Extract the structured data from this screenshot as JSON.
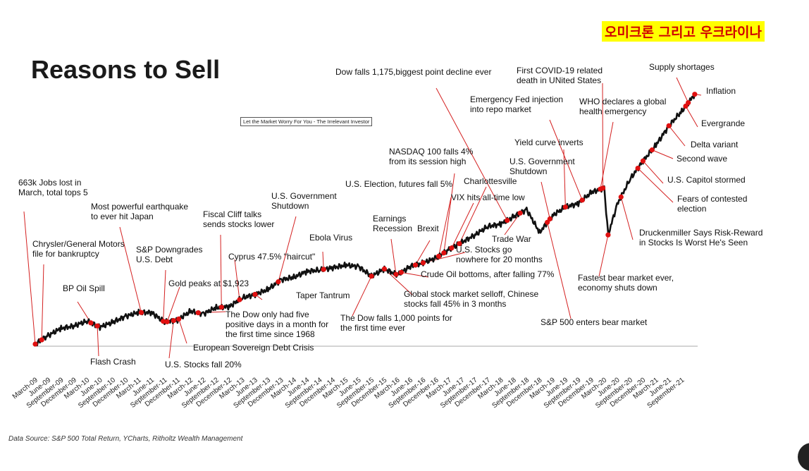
{
  "header": {
    "title": "Reasons to Sell",
    "korean_banner": "오미크론 그리고 우크라이나",
    "tagline": "Let the Market Worry For You - The Irrelevant Investor"
  },
  "footer": {
    "source": "Data Source: S&P 500 Total Return, YCharts, Ritholtz Wealth Management"
  },
  "chart_data": {
    "type": "line",
    "title": "Reasons to Sell",
    "x_tick_labels": [
      "March-09",
      "June-09",
      "September-09",
      "December-09",
      "March-10",
      "June-10",
      "September-10",
      "December-10",
      "March-11",
      "June-11",
      "September-11",
      "December-11",
      "March-12",
      "June-12",
      "September-12",
      "December-12",
      "March-13",
      "June-13",
      "September-13",
      "December-13",
      "March-14",
      "June-14",
      "September-14",
      "December-14",
      "March-15",
      "June-15",
      "September-15",
      "December-15",
      "March-16",
      "June-16",
      "September-16",
      "December-16",
      "March-17",
      "June-17",
      "September-17",
      "December-17",
      "March-18",
      "June-18",
      "September-18",
      "December-18",
      "March-19",
      "June-19",
      "September-19",
      "December-19",
      "March-20",
      "June-20",
      "September-20",
      "December-20",
      "March-21",
      "June-21",
      "September-21"
    ],
    "series": [
      {
        "color": "#000000",
        "points": [
          [
            0,
            0
          ],
          [
            1,
            7
          ],
          [
            2,
            13
          ],
          [
            3,
            15
          ],
          [
            4,
            19
          ],
          [
            5,
            14
          ],
          [
            6,
            18
          ],
          [
            7,
            23
          ],
          [
            8,
            26
          ],
          [
            9,
            26
          ],
          [
            10,
            18
          ],
          [
            11,
            20
          ],
          [
            12,
            27
          ],
          [
            13,
            25
          ],
          [
            14,
            30
          ],
          [
            15,
            31
          ],
          [
            16,
            38
          ],
          [
            17,
            41
          ],
          [
            18,
            45
          ],
          [
            19,
            53
          ],
          [
            20,
            55
          ],
          [
            21,
            60
          ],
          [
            22,
            61
          ],
          [
            23,
            63
          ],
          [
            24,
            65
          ],
          [
            25,
            64
          ],
          [
            26,
            56
          ],
          [
            27,
            62
          ],
          [
            28,
            57
          ],
          [
            29,
            64
          ],
          [
            30,
            67
          ],
          [
            31,
            71
          ],
          [
            32,
            78
          ],
          [
            33,
            84
          ],
          [
            34,
            90
          ],
          [
            35,
            97
          ],
          [
            36,
            99
          ],
          [
            37,
            105
          ],
          [
            38,
            111
          ],
          [
            39,
            92
          ],
          [
            40,
            106
          ],
          [
            41,
            113
          ],
          [
            42,
            116
          ],
          [
            43,
            125
          ],
          [
            44,
            129
          ],
          [
            44.3,
            90
          ],
          [
            45,
            115
          ],
          [
            46,
            136
          ],
          [
            47,
            151
          ],
          [
            48,
            164
          ],
          [
            49,
            180
          ],
          [
            50,
            192
          ],
          [
            51,
            206
          ]
        ]
      }
    ],
    "annotations": [
      {
        "text": "663k Jobs lost in\nMarch, total tops 5",
        "at": 0
      },
      {
        "text": "Chrysler/General Motors\nfile for bankruptcy",
        "at": 0.5
      },
      {
        "text": "BP Oil Spill",
        "at": 4.3
      },
      {
        "text": "Flash Crash",
        "at": 4.8
      },
      {
        "text": "Most powerful earthquake\nto ever hit Japan",
        "at": 8.2
      },
      {
        "text": "S&P Downgrades\nU.S. Debt",
        "at": 9.9
      },
      {
        "text": "U.S. Stocks fall 20%",
        "at": 10.7
      },
      {
        "text": "Gold peaks at $1,923",
        "at": 10.2
      },
      {
        "text": "European Sovereign Debt Crisis",
        "at": 11.1
      },
      {
        "text": "Fiscal Cliff talks\nsends stocks lower",
        "at": 14.4
      },
      {
        "text": "The Dow only had five\npositive days in a month for\nthe first time since 1968",
        "at": 12.6
      },
      {
        "text": "Cyprus 47.5% \"haircut\"",
        "at": 15.8
      },
      {
        "text": "U.S. Government\nShutdown",
        "at": 18.8
      },
      {
        "text": "Taper Tantrum",
        "at": 17
      },
      {
        "text": "Ebola Virus",
        "at": 22.3
      },
      {
        "text": "The Dow falls 1,000 points for\nthe first time ever",
        "at": 26
      },
      {
        "text": "Global stock market selloff, Chinese\nstocks fall 45% in 3 months",
        "at": 27
      },
      {
        "text": "Earnings\nRecession",
        "at": 27.9
      },
      {
        "text": "Crude Oil bottoms, after falling 77%",
        "at": 28.3
      },
      {
        "text": "Brexit",
        "at": 29.4
      },
      {
        "text": "U.S. Stocks go\nnowhere for 20 months",
        "at": 30
      },
      {
        "text": "U.S. Election, futures fall 5%",
        "at": 31.2
      },
      {
        "text": "NASDAQ 100 falls 4%\nfrom its  session high",
        "at": 31.6
      },
      {
        "text": "VIX hits all-time low",
        "at": 32.2
      },
      {
        "text": "Charlottesville",
        "at": 32.8
      },
      {
        "text": "Dow falls 1,175,biggest point decline ever",
        "at": 36.5
      },
      {
        "text": "Trade War",
        "at": 37.5
      },
      {
        "text": "U.S. Government\nShutdown",
        "at": 39.8
      },
      {
        "text": "S&P 500 enters bear market",
        "at": 39.6
      },
      {
        "text": "Yield curve inverts",
        "at": 41
      },
      {
        "text": "Emergency Fed injection\ninto repo market",
        "at": 42.3
      },
      {
        "text": "First COVID-19 related\ndeath in UNited States",
        "at": 43.9
      },
      {
        "text": "WHO declares a global\nhealth emergency",
        "at": 43.7
      },
      {
        "text": "Fastest bear market ever,\neconomy shuts down",
        "at": 44.3
      },
      {
        "text": "Druckenmiller Says Risk-Reward\nin Stocks Is Worst He's Seen",
        "at": 45.3
      },
      {
        "text": "Fears of contested\nelection",
        "at": 46.6
      },
      {
        "text": "U.S. Capitol stormed",
        "at": 47
      },
      {
        "text": "Second wave",
        "at": 47.7
      },
      {
        "text": "Delta variant",
        "at": 49
      },
      {
        "text": "Evergrande",
        "at": 50.3
      },
      {
        "text": "Supply shortages",
        "at": 50.5
      },
      {
        "text": "Inflation",
        "at": 51
      }
    ]
  }
}
